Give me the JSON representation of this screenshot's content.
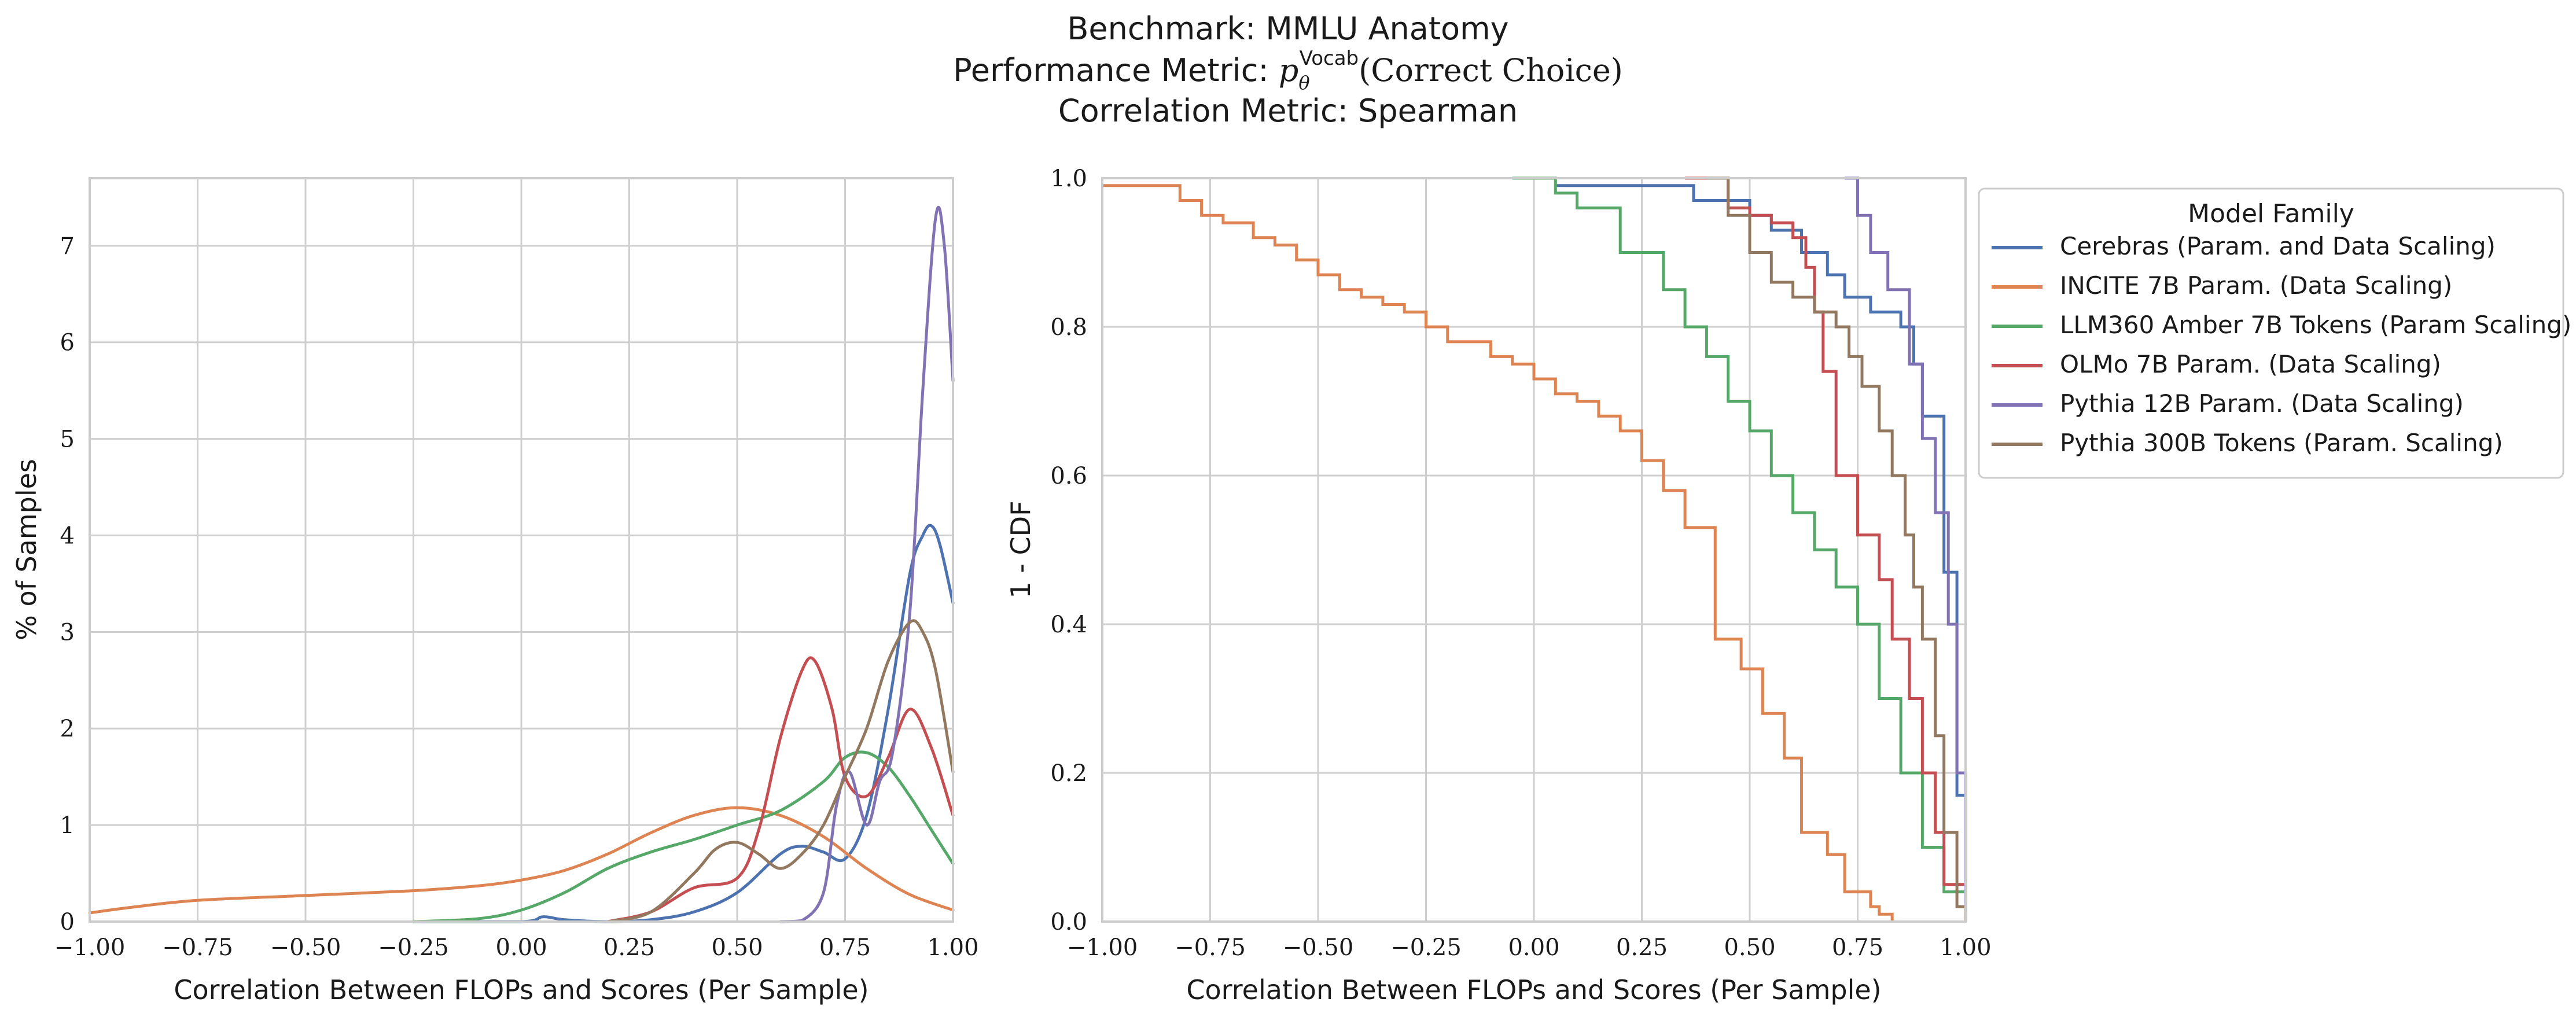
{
  "title": {
    "line1": "Benchmark: MMLU Anatomy",
    "line2_prefix": "Performance Metric: ",
    "line2_math": "p",
    "line2_sub": "θ",
    "line2_sup": "Vocab",
    "line2_suffix": "(Correct Choice)",
    "line3": "Correlation Metric: Spearman"
  },
  "legend": {
    "title": "Model Family",
    "placement": "outside-right"
  },
  "chart_data": [
    {
      "type": "line",
      "subtype": "kde",
      "xlabel": "Correlation Between FLOPs and Scores (Per Sample)",
      "ylabel": "% of Samples",
      "xlim": [
        -1.0,
        1.0
      ],
      "ylim": [
        0,
        7.7
      ],
      "grid": true,
      "xticks": [
        "−1.00",
        "−0.75",
        "−0.50",
        "−0.25",
        "0.00",
        "0.25",
        "0.50",
        "0.75",
        "1.00"
      ],
      "yticks": [
        "0",
        "1",
        "2",
        "3",
        "4",
        "5",
        "6",
        "7"
      ],
      "series": [
        {
          "name": "Cerebras (Param. and Data Scaling)",
          "color": "#4c72b0",
          "x": [
            -0.25,
            0.0,
            0.05,
            0.1,
            0.2,
            0.3,
            0.4,
            0.5,
            0.6,
            0.65,
            0.7,
            0.75,
            0.8,
            0.85,
            0.9,
            0.93,
            0.95,
            0.97,
            1.0
          ],
          "y": [
            0,
            0.0,
            0.05,
            0.02,
            0.0,
            0.02,
            0.1,
            0.3,
            0.7,
            0.78,
            0.72,
            0.65,
            1.1,
            2.2,
            3.6,
            4.0,
            4.1,
            3.9,
            3.3
          ]
        },
        {
          "name": "INCITE 7B Param. (Data Scaling)",
          "color": "#dd8452",
          "x": [
            -1.0,
            -0.9,
            -0.75,
            -0.5,
            -0.25,
            -0.1,
            0.0,
            0.1,
            0.2,
            0.3,
            0.4,
            0.5,
            0.6,
            0.7,
            0.8,
            0.9,
            1.0
          ],
          "y": [
            0.09,
            0.15,
            0.22,
            0.27,
            0.32,
            0.37,
            0.43,
            0.53,
            0.7,
            0.92,
            1.1,
            1.18,
            1.1,
            0.88,
            0.55,
            0.28,
            0.12
          ]
        },
        {
          "name": "LLM360 Amber 7B Tokens (Param Scaling)",
          "color": "#55a868",
          "x": [
            -0.25,
            -0.1,
            0.0,
            0.1,
            0.2,
            0.3,
            0.4,
            0.5,
            0.6,
            0.7,
            0.75,
            0.8,
            0.85,
            0.9,
            0.95,
            1.0
          ],
          "y": [
            0.0,
            0.03,
            0.12,
            0.3,
            0.55,
            0.72,
            0.85,
            1.0,
            1.15,
            1.45,
            1.7,
            1.75,
            1.6,
            1.3,
            0.95,
            0.6
          ]
        },
        {
          "name": "OLMo 7B Param. (Data Scaling)",
          "color": "#c44e52",
          "x": [
            0.2,
            0.3,
            0.4,
            0.5,
            0.55,
            0.6,
            0.65,
            0.68,
            0.72,
            0.75,
            0.8,
            0.85,
            0.9,
            0.95,
            1.0
          ],
          "y": [
            0.0,
            0.1,
            0.35,
            0.45,
            0.95,
            1.9,
            2.6,
            2.7,
            2.2,
            1.5,
            1.3,
            1.7,
            2.2,
            1.8,
            1.1
          ]
        },
        {
          "name": "Pythia 12B Param. (Data Scaling)",
          "color": "#8172b3",
          "x": [
            0.6,
            0.65,
            0.7,
            0.73,
            0.76,
            0.8,
            0.83,
            0.86,
            0.9,
            0.93,
            0.96,
            0.98,
            1.0
          ],
          "y": [
            0.0,
            0.01,
            0.3,
            1.2,
            1.55,
            1.0,
            1.45,
            1.75,
            3.2,
            5.5,
            7.3,
            7.0,
            5.6
          ]
        },
        {
          "name": "Pythia 300B Tokens (Param. Scaling)",
          "color": "#937860",
          "x": [
            0.2,
            0.3,
            0.4,
            0.45,
            0.5,
            0.55,
            0.6,
            0.65,
            0.7,
            0.75,
            0.8,
            0.85,
            0.9,
            0.93,
            0.96,
            1.0
          ],
          "y": [
            0.0,
            0.1,
            0.5,
            0.75,
            0.82,
            0.7,
            0.55,
            0.7,
            1.0,
            1.5,
            2.0,
            2.7,
            3.1,
            3.0,
            2.6,
            1.55
          ]
        }
      ]
    },
    {
      "type": "line",
      "subtype": "step",
      "xlabel": "Correlation Between FLOPs and Scores (Per Sample)",
      "ylabel": "1 - CDF",
      "xlim": [
        -1.0,
        1.0
      ],
      "ylim": [
        0.0,
        1.0
      ],
      "grid": true,
      "xticks": [
        "−1.00",
        "−0.75",
        "−0.50",
        "−0.25",
        "0.00",
        "0.25",
        "0.50",
        "0.75",
        "1.00"
      ],
      "yticks": [
        "0.0",
        "0.2",
        "0.4",
        "0.6",
        "0.8",
        "1.0"
      ],
      "series": [
        {
          "name": "Cerebras (Param. and Data Scaling)",
          "color": "#4c72b0",
          "x": [
            0.05,
            0.37,
            0.5,
            0.55,
            0.62,
            0.68,
            0.72,
            0.78,
            0.85,
            0.88,
            0.9,
            0.95,
            0.98,
            1.0
          ],
          "y": [
            0.99,
            0.97,
            0.95,
            0.93,
            0.9,
            0.87,
            0.84,
            0.82,
            0.8,
            0.75,
            0.68,
            0.47,
            0.17,
            0.0
          ]
        },
        {
          "name": "INCITE 7B Param. (Data Scaling)",
          "color": "#dd8452",
          "x": [
            -1.0,
            -0.82,
            -0.77,
            -0.72,
            -0.65,
            -0.6,
            -0.55,
            -0.5,
            -0.45,
            -0.4,
            -0.35,
            -0.3,
            -0.25,
            -0.2,
            -0.1,
            -0.05,
            0.0,
            0.05,
            0.1,
            0.15,
            0.2,
            0.25,
            0.3,
            0.35,
            0.42,
            0.48,
            0.53,
            0.58,
            0.62,
            0.68,
            0.72,
            0.78,
            0.8,
            0.83
          ],
          "y": [
            0.99,
            0.97,
            0.95,
            0.94,
            0.92,
            0.91,
            0.89,
            0.87,
            0.85,
            0.84,
            0.83,
            0.82,
            0.8,
            0.78,
            0.76,
            0.75,
            0.73,
            0.71,
            0.7,
            0.68,
            0.66,
            0.62,
            0.58,
            0.53,
            0.38,
            0.34,
            0.28,
            0.22,
            0.12,
            0.09,
            0.04,
            0.02,
            0.01,
            0.0
          ]
        },
        {
          "name": "LLM360 Amber 7B Tokens (Param Scaling)",
          "color": "#55a868",
          "x": [
            -0.05,
            0.05,
            0.1,
            0.2,
            0.3,
            0.35,
            0.4,
            0.45,
            0.5,
            0.55,
            0.6,
            0.65,
            0.7,
            0.75,
            0.8,
            0.85,
            0.9,
            0.95,
            1.0
          ],
          "y": [
            1.0,
            0.98,
            0.96,
            0.9,
            0.85,
            0.8,
            0.76,
            0.7,
            0.66,
            0.6,
            0.55,
            0.5,
            0.45,
            0.4,
            0.3,
            0.2,
            0.1,
            0.04,
            0.0
          ]
        },
        {
          "name": "OLMo 7B Param. (Data Scaling)",
          "color": "#c44e52",
          "x": [
            0.35,
            0.45,
            0.5,
            0.55,
            0.6,
            0.63,
            0.65,
            0.67,
            0.7,
            0.75,
            0.8,
            0.83,
            0.87,
            0.9,
            0.93,
            0.95,
            1.0
          ],
          "y": [
            1.0,
            0.96,
            0.95,
            0.94,
            0.92,
            0.88,
            0.82,
            0.74,
            0.6,
            0.52,
            0.46,
            0.38,
            0.3,
            0.2,
            0.12,
            0.05,
            0.0
          ]
        },
        {
          "name": "Pythia 12B Param. (Data Scaling)",
          "color": "#8172b3",
          "x": [
            0.72,
            0.75,
            0.78,
            0.82,
            0.87,
            0.9,
            0.93,
            0.96,
            0.98,
            1.0
          ],
          "y": [
            1.0,
            0.95,
            0.9,
            0.85,
            0.75,
            0.65,
            0.55,
            0.4,
            0.2,
            0.0
          ]
        },
        {
          "name": "Pythia 300B Tokens (Param. Scaling)",
          "color": "#937860",
          "x": [
            0.4,
            0.45,
            0.5,
            0.55,
            0.6,
            0.65,
            0.7,
            0.73,
            0.76,
            0.8,
            0.83,
            0.86,
            0.88,
            0.9,
            0.93,
            0.95,
            0.98,
            1.0
          ],
          "y": [
            1.0,
            0.95,
            0.9,
            0.86,
            0.84,
            0.82,
            0.8,
            0.76,
            0.72,
            0.66,
            0.6,
            0.52,
            0.45,
            0.38,
            0.25,
            0.12,
            0.02,
            0.0
          ]
        }
      ]
    }
  ]
}
